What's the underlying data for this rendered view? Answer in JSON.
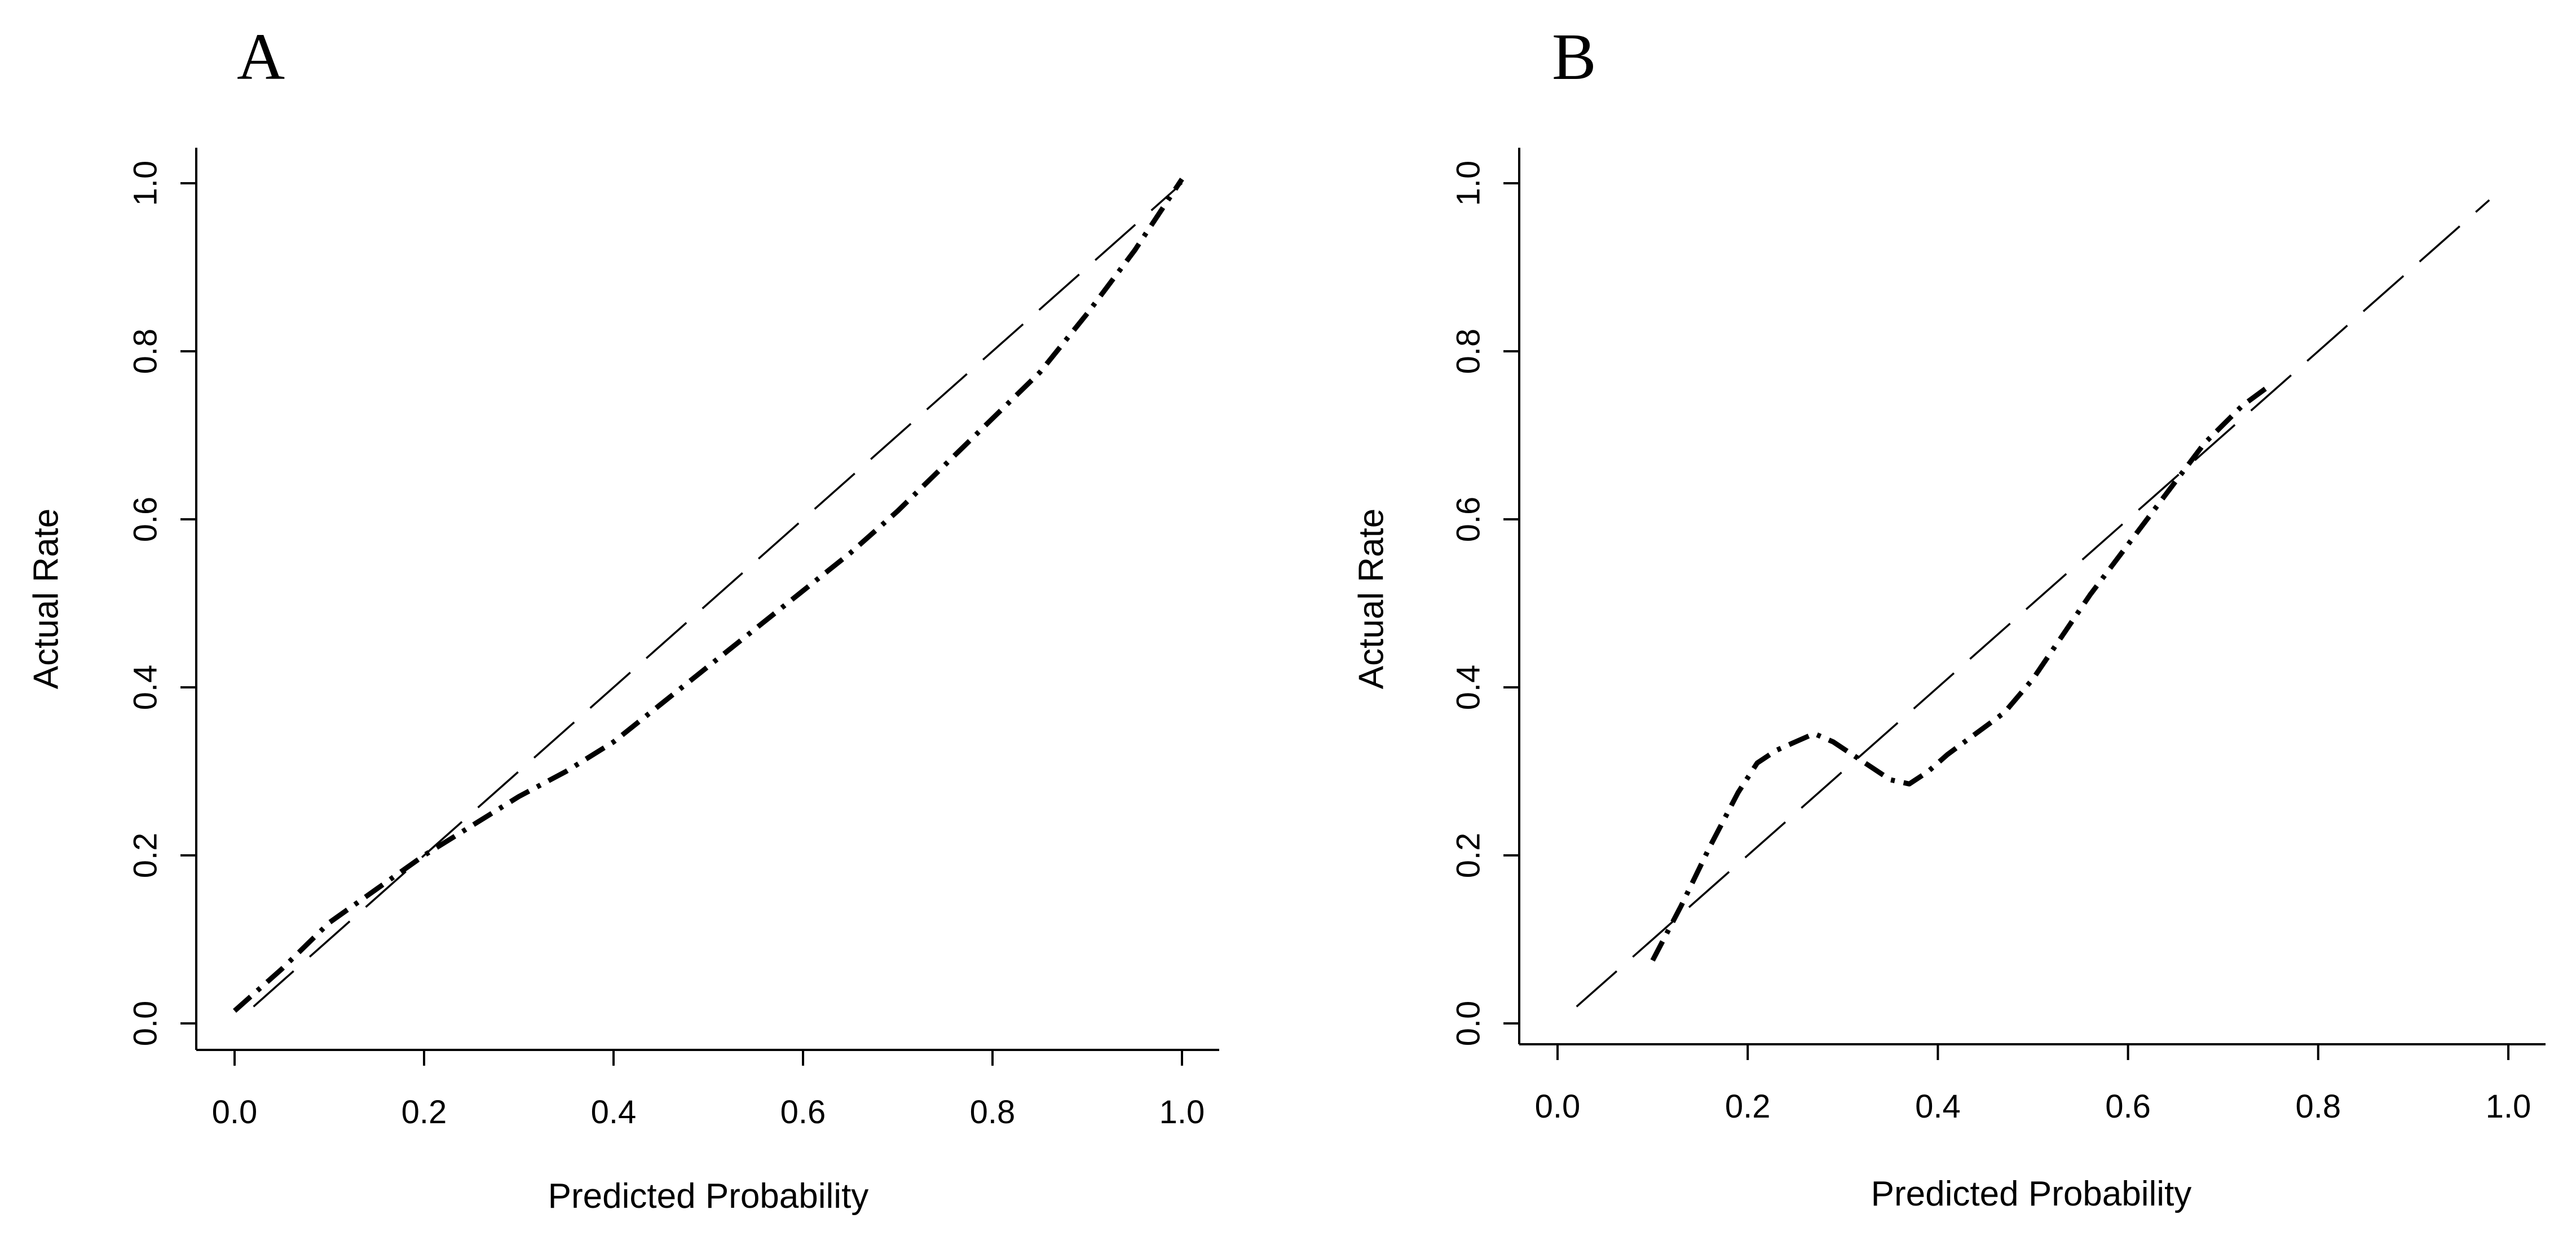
{
  "chart_data": [
    {
      "type": "line",
      "panel_label": "A",
      "xlabel": "Predicted Probability",
      "ylabel": "Actual Rate",
      "xlim": [
        0.0,
        1.0
      ],
      "ylim": [
        0.0,
        1.0
      ],
      "xticks": [
        "0.0",
        "0.2",
        "0.4",
        "0.6",
        "0.8",
        "1.0"
      ],
      "yticks": [
        "0.0",
        "0.2",
        "0.4",
        "0.6",
        "0.8",
        "1.0"
      ],
      "grid": false,
      "reference": {
        "x": [
          0.02,
          1.0
        ],
        "y": [
          0.02,
          1.0
        ],
        "style": "long-dash"
      },
      "series": [
        {
          "style": "dash-dot",
          "x": [
            0.0,
            0.05,
            0.1,
            0.15,
            0.2,
            0.25,
            0.3,
            0.35,
            0.4,
            0.45,
            0.5,
            0.55,
            0.6,
            0.65,
            0.7,
            0.75,
            0.8,
            0.85,
            0.9,
            0.95,
            1.0
          ],
          "y": [
            0.015,
            0.065,
            0.12,
            0.16,
            0.2,
            0.235,
            0.27,
            0.3,
            0.335,
            0.38,
            0.425,
            0.47,
            0.515,
            0.56,
            0.61,
            0.665,
            0.72,
            0.775,
            0.845,
            0.92,
            1.005
          ]
        }
      ]
    },
    {
      "type": "line",
      "panel_label": "B",
      "xlabel": "Predicted Probability",
      "ylabel": "Actual Rate",
      "xlim": [
        0.0,
        1.0
      ],
      "ylim": [
        0.0,
        1.0
      ],
      "xticks": [
        "0.0",
        "0.2",
        "0.4",
        "0.6",
        "0.8",
        "1.0"
      ],
      "yticks": [
        "0.0",
        "0.2",
        "0.4",
        "0.6",
        "0.8",
        "1.0"
      ],
      "grid": false,
      "reference": {
        "x": [
          0.02,
          0.98
        ],
        "y": [
          0.02,
          0.98
        ],
        "style": "long-dash"
      },
      "series": [
        {
          "style": "dash-dot",
          "x": [
            0.1,
            0.13,
            0.16,
            0.19,
            0.21,
            0.23,
            0.25,
            0.27,
            0.29,
            0.31,
            0.33,
            0.35,
            0.37,
            0.39,
            0.41,
            0.44,
            0.47,
            0.5,
            0.53,
            0.56,
            0.6,
            0.64,
            0.68,
            0.72,
            0.75
          ],
          "y": [
            0.075,
            0.14,
            0.21,
            0.275,
            0.31,
            0.325,
            0.335,
            0.345,
            0.335,
            0.32,
            0.305,
            0.29,
            0.285,
            0.3,
            0.32,
            0.345,
            0.37,
            0.41,
            0.46,
            0.51,
            0.57,
            0.63,
            0.69,
            0.735,
            0.76
          ]
        }
      ]
    }
  ]
}
